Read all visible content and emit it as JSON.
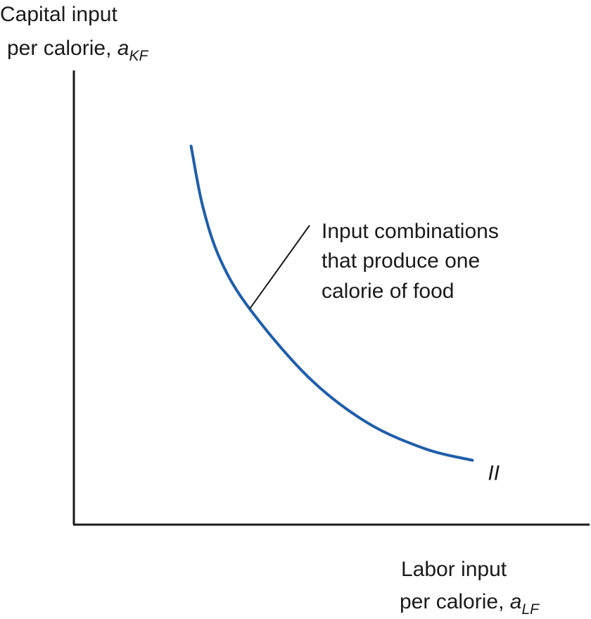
{
  "chart_data": {
    "type": "line",
    "ylabel": {
      "line1": "Capital input",
      "line2": "per calorie, ",
      "var": "a",
      "sub": "KF"
    },
    "xlabel": {
      "line1": "Labor input",
      "line2": "per calorie, ",
      "var": "a",
      "sub": "LF"
    },
    "series": [
      {
        "name": "II",
        "color": "#1f5ea8",
        "x": [
          1.0,
          1.1,
          1.25,
          1.5,
          2.0,
          2.5,
          3.0,
          3.4
        ],
        "y": [
          5.0,
          4.2,
          3.5,
          2.85,
          1.95,
          1.35,
          1.0,
          0.85
        ]
      }
    ],
    "annotation": {
      "lines": [
        "Input combinations",
        "that produce one",
        "calorie of food"
      ]
    },
    "xlim": [
      0,
      4.4
    ],
    "ylim": [
      0,
      6.0
    ],
    "ticks": "none",
    "grid": false
  }
}
